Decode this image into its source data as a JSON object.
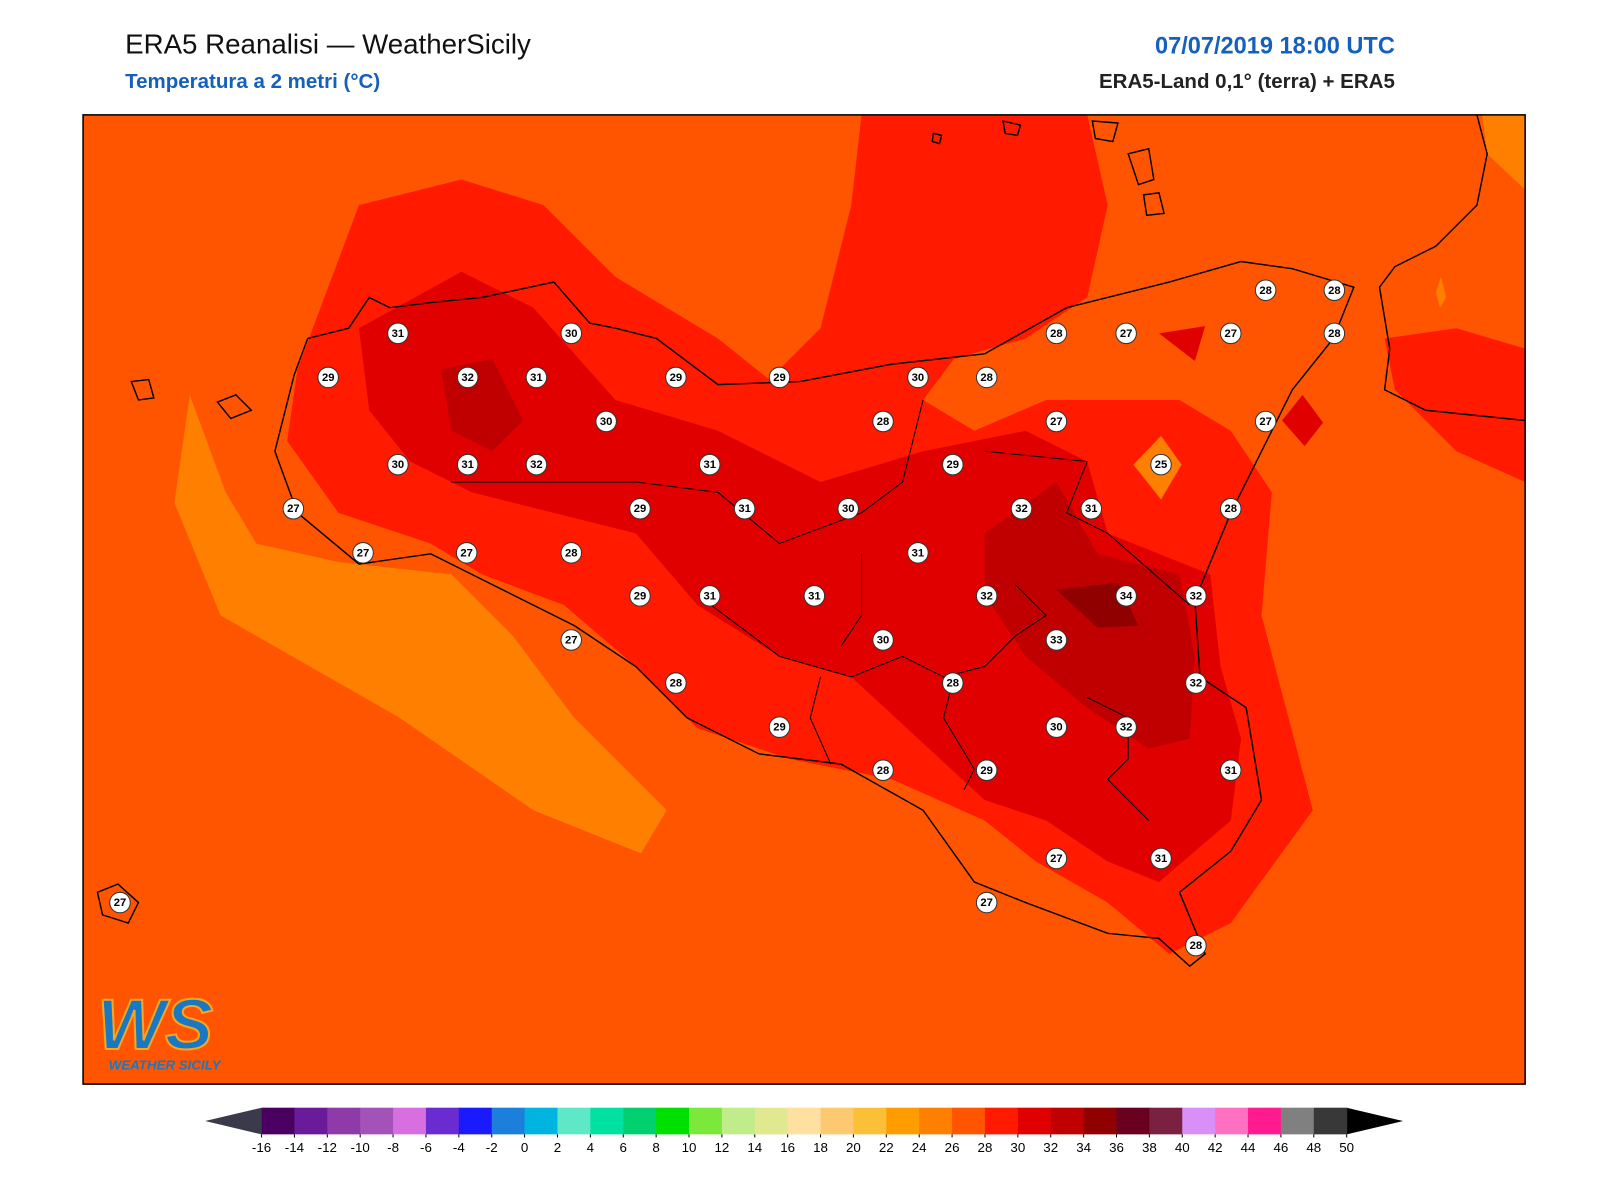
{
  "header": {
    "title": "ERA5 Reanalisi — WeatherSicily",
    "subtitle": "Temperatura a 2 metri (°C)",
    "datetime": "07/07/2019 18:00 UTC",
    "source": "ERA5-Land 0,1° (terra) + ERA5"
  },
  "stations": [
    28,
    28,
    31,
    30,
    28,
    27,
    27,
    28,
    29,
    32,
    31,
    29,
    29,
    30,
    28,
    30,
    28,
    27,
    27,
    30,
    31,
    32,
    31,
    29,
    25,
    27,
    29,
    31,
    30,
    32,
    31,
    28,
    27,
    27,
    28,
    31,
    29,
    31,
    31,
    32,
    34,
    32,
    27,
    30,
    33,
    28,
    28,
    32,
    29,
    30,
    32,
    28,
    29,
    31,
    27,
    31,
    27,
    27,
    28
  ],
  "logo": {
    "mark": "WS",
    "name": "WEATHER SICILY"
  },
  "colorbar": {
    "ticks": [
      -16,
      -14,
      -12,
      -10,
      -8,
      -6,
      -4,
      -2,
      0,
      2,
      4,
      6,
      8,
      10,
      12,
      14,
      16,
      18,
      20,
      22,
      24,
      26,
      28,
      30,
      32,
      34,
      36,
      38,
      40,
      42,
      44,
      46,
      48,
      50
    ],
    "colors": [
      "#4a0060",
      "#6a1b9a",
      "#8e3aa8",
      "#a352b8",
      "#d86fe0",
      "#6a2bd0",
      "#1a1aff",
      "#1c7fdb",
      "#00b4e0",
      "#5ee8c8",
      "#00e0a0",
      "#00d070",
      "#00e000",
      "#7de83c",
      "#c0ec8c",
      "#e0e890",
      "#ffe0a0",
      "#fcc870",
      "#fcc038",
      "#ff9d00",
      "#ff7f00",
      "#ff5500",
      "#ff1a00",
      "#e00000",
      "#c00000",
      "#900000",
      "#6a0020",
      "#7a2040",
      "#d890f8",
      "#ff70c0",
      "#ff1a90",
      "#808080",
      "#383838"
    ],
    "under": "#3a3a4a",
    "over": "#000000"
  }
}
